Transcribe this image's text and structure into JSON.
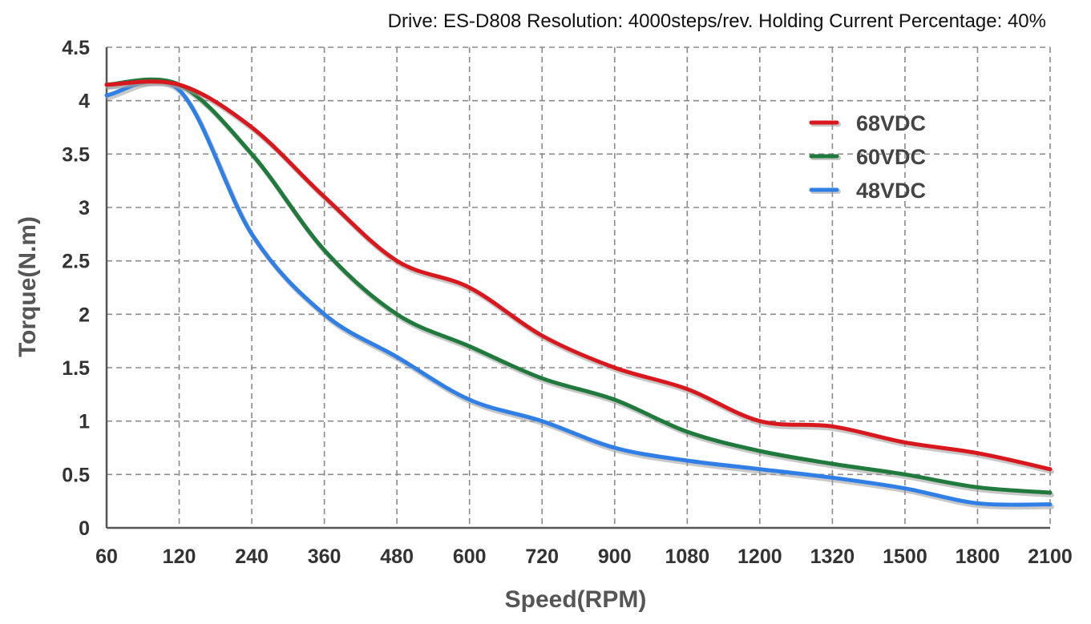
{
  "chart_data": {
    "type": "line",
    "title": "Drive: ES-D808 Resolution: 4000steps/rev. Holding Current Percentage: 40%",
    "xlabel": "Speed(RPM)",
    "ylabel": "Torque(N.m)",
    "categories": [
      "60",
      "120",
      "240",
      "360",
      "480",
      "600",
      "720",
      "900",
      "1080",
      "1200",
      "1320",
      "1500",
      "1800",
      "2100"
    ],
    "yticks": [
      "0",
      "0.5",
      "1",
      "1.5",
      "2",
      "2.5",
      "3",
      "3.5",
      "4",
      "4.5"
    ],
    "ylim": [
      0,
      4.5
    ],
    "grid": true,
    "legend_position": "top-right",
    "series": [
      {
        "name": "68VDC",
        "color": "#d9181e",
        "values": [
          4.15,
          4.15,
          3.75,
          3.1,
          2.5,
          2.25,
          1.8,
          1.5,
          1.3,
          1.0,
          0.95,
          0.8,
          0.7,
          0.55
        ]
      },
      {
        "name": "60VDC",
        "color": "#1f7a3c",
        "values": [
          4.15,
          4.15,
          3.5,
          2.6,
          2.0,
          1.7,
          1.4,
          1.2,
          0.9,
          0.72,
          0.6,
          0.5,
          0.38,
          0.33
        ]
      },
      {
        "name": "48VDC",
        "color": "#2f7fe6",
        "values": [
          4.05,
          4.1,
          2.75,
          2.0,
          1.6,
          1.2,
          1.0,
          0.75,
          0.63,
          0.55,
          0.47,
          0.37,
          0.23,
          0.22
        ]
      }
    ]
  }
}
